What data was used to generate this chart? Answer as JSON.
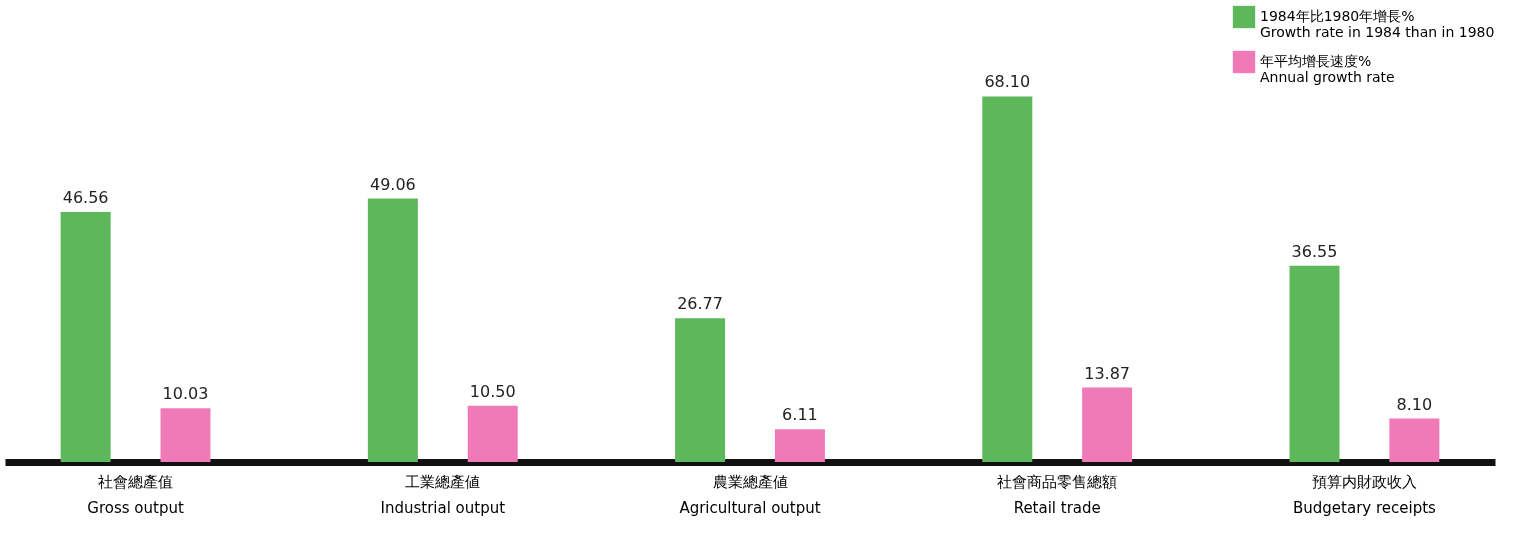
{
  "chart_data": {
    "type": "bar",
    "categories": [
      "社會總產值\nGross output",
      "工業總產値\nIndustrial output",
      "農業總產値\nAgricultural output",
      "社會商品零售總額\nRetail trade",
      "預算内財政收入\nBudgetary receipts"
    ],
    "series": [
      {
        "name": "1984年比1980年增長%\nGrowth rate in 1984 than in 1980",
        "color": "#5cb85a",
        "values": [
          46.56,
          49.06,
          26.77,
          68.1,
          36.55
        ],
        "value_labels": [
          "46.56",
          "49.06",
          "26.77",
          "68.10",
          "36.55"
        ]
      },
      {
        "name": "年平均增長速度%\nAnnual growth rate",
        "color": "#f07ab8",
        "values": [
          10.03,
          10.5,
          6.11,
          13.87,
          8.1
        ],
        "value_labels": [
          "10.03",
          "10.50",
          "6.11",
          "13.87",
          "8.10"
        ]
      }
    ],
    "legend": "top right",
    "grid": false
  }
}
